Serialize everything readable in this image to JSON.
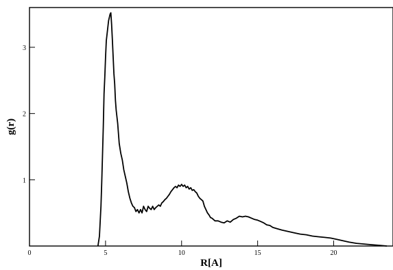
{
  "chart_data": {
    "type": "line",
    "title": "",
    "xlabel": "R[A]",
    "ylabel": "g(r)",
    "xlim": [
      0,
      23.9
    ],
    "ylim": [
      0,
      3.6
    ],
    "grid": false,
    "legend": "none",
    "line_color": "#000000",
    "x_ticks": [
      0,
      5,
      10,
      15,
      20
    ],
    "x_tick_labels": [
      "0",
      "5",
      "10",
      "15",
      "20"
    ],
    "y_ticks": [
      1,
      2,
      3
    ],
    "y_tick_labels": [
      "1",
      "2",
      "3"
    ],
    "series": [
      {
        "x": [
          4.5,
          4.6,
          4.7,
          4.75,
          4.8,
          4.85,
          4.9,
          4.95,
          5.0,
          5.05,
          5.1,
          5.15,
          5.2,
          5.25,
          5.3,
          5.35,
          5.4,
          5.45,
          5.5,
          5.55,
          5.6,
          5.65,
          5.7,
          5.75,
          5.8,
          5.85,
          5.9,
          6.0,
          6.1,
          6.2,
          6.3,
          6.4,
          6.5,
          6.6,
          6.7,
          6.8,
          6.9,
          7.0,
          7.1,
          7.2,
          7.3,
          7.4,
          7.5,
          7.6,
          7.7,
          7.8,
          7.9,
          8.0,
          8.1,
          8.2,
          8.3,
          8.4,
          8.5,
          8.6,
          8.7,
          8.8,
          8.9,
          9.0,
          9.1,
          9.2,
          9.3,
          9.4,
          9.5,
          9.6,
          9.7,
          9.8,
          9.9,
          10.0,
          10.1,
          10.2,
          10.3,
          10.4,
          10.5,
          10.6,
          10.7,
          10.8,
          10.9,
          11.0,
          11.1,
          11.2,
          11.3,
          11.4,
          11.5,
          11.6,
          11.7,
          11.8,
          11.9,
          12.0,
          12.2,
          12.4,
          12.6,
          12.8,
          13.0,
          13.2,
          13.4,
          13.6,
          13.8,
          14.0,
          14.2,
          14.4,
          14.6,
          14.8,
          15.0,
          15.2,
          15.4,
          15.6,
          15.8,
          16.0,
          16.3,
          16.6,
          17.0,
          17.4,
          17.8,
          18.2,
          18.6,
          19.0,
          19.4,
          19.8,
          20.2,
          20.6,
          21.0,
          21.5,
          22.0,
          22.5,
          23.0,
          23.5
        ],
        "values": [
          0.0,
          0.15,
          0.6,
          0.95,
          1.35,
          1.8,
          2.3,
          2.55,
          2.85,
          3.1,
          3.2,
          3.3,
          3.4,
          3.45,
          3.5,
          3.52,
          3.35,
          3.1,
          2.85,
          2.6,
          2.45,
          2.2,
          2.05,
          1.95,
          1.85,
          1.7,
          1.55,
          1.4,
          1.3,
          1.15,
          1.05,
          0.95,
          0.82,
          0.72,
          0.65,
          0.6,
          0.58,
          0.52,
          0.55,
          0.5,
          0.55,
          0.5,
          0.6,
          0.55,
          0.52,
          0.6,
          0.57,
          0.55,
          0.6,
          0.55,
          0.58,
          0.6,
          0.62,
          0.6,
          0.65,
          0.67,
          0.7,
          0.72,
          0.75,
          0.78,
          0.82,
          0.85,
          0.88,
          0.9,
          0.88,
          0.92,
          0.9,
          0.93,
          0.9,
          0.92,
          0.88,
          0.9,
          0.86,
          0.88,
          0.84,
          0.85,
          0.82,
          0.8,
          0.75,
          0.72,
          0.7,
          0.68,
          0.6,
          0.55,
          0.5,
          0.47,
          0.43,
          0.42,
          0.38,
          0.38,
          0.36,
          0.35,
          0.38,
          0.36,
          0.4,
          0.42,
          0.45,
          0.44,
          0.45,
          0.44,
          0.42,
          0.4,
          0.39,
          0.37,
          0.35,
          0.32,
          0.31,
          0.28,
          0.26,
          0.24,
          0.22,
          0.2,
          0.18,
          0.17,
          0.15,
          0.14,
          0.13,
          0.12,
          0.1,
          0.08,
          0.06,
          0.04,
          0.03,
          0.02,
          0.01,
          0.0
        ]
      }
    ]
  }
}
